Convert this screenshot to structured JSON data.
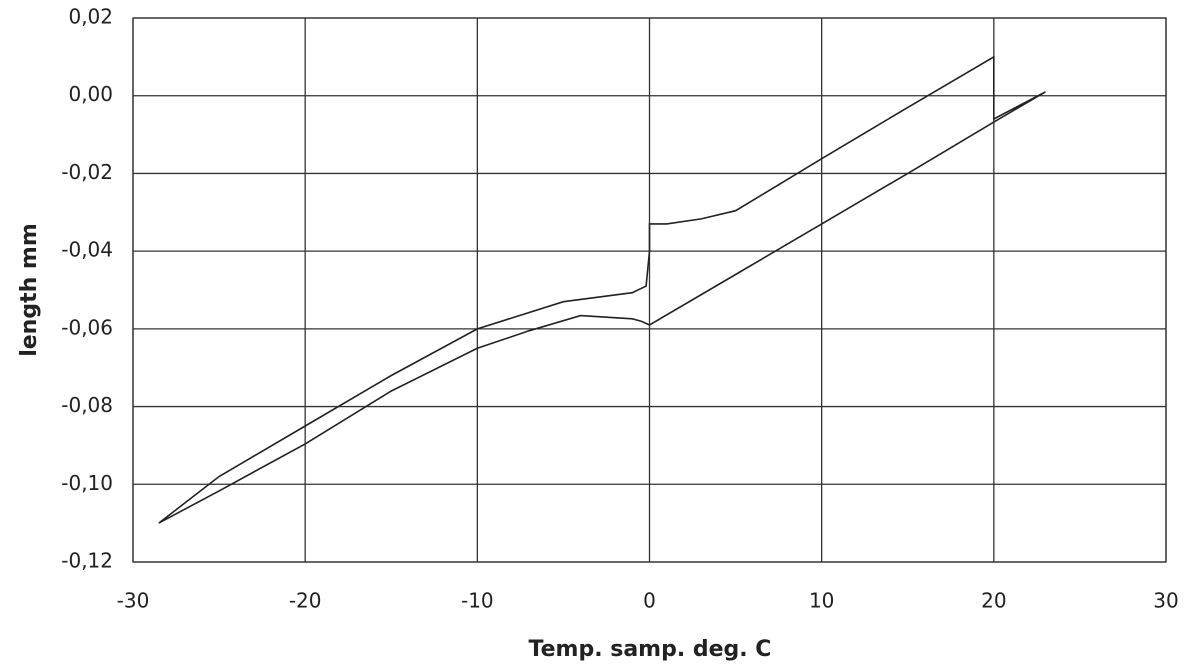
{
  "chart_data": {
    "type": "line",
    "x_label": "Temp. samp. deg. C",
    "y_label": "length mm",
    "x": [
      -28.5,
      -25,
      -20,
      -15,
      -10,
      -5,
      -1,
      -0.2,
      0,
      0,
      1,
      3,
      5,
      10,
      15,
      20,
      20,
      23,
      20,
      15,
      10,
      5,
      0,
      -0.5,
      -1,
      -4,
      -7,
      -10,
      -15,
      -20,
      -25,
      -28.5
    ],
    "values": [
      -0.11,
      -0.098,
      -0.085,
      -0.072,
      -0.06,
      -0.053,
      -0.0507,
      -0.049,
      -0.04,
      -0.033,
      -0.033,
      -0.0317,
      -0.0296,
      -0.0162,
      -0.003,
      0.01,
      -0.006,
      0.001,
      -0.0068,
      -0.02,
      -0.033,
      -0.046,
      -0.059,
      -0.058,
      -0.0574,
      -0.0566,
      -0.0605,
      -0.065,
      -0.076,
      -0.0896,
      -0.1017,
      -0.11
    ],
    "color": "#222222",
    "xlim": [
      -30,
      30
    ],
    "xticks": [
      -30,
      -20,
      -10,
      0,
      10,
      20,
      30
    ],
    "ylim": [
      -0.12,
      0.02
    ],
    "yticks": [
      {
        "value": -0.12,
        "label": "-0,12"
      },
      {
        "value": -0.1,
        "label": "-0,10"
      },
      {
        "value": -0.08,
        "label": "-0,08"
      },
      {
        "value": -0.06,
        "label": "-0,06"
      },
      {
        "value": -0.04,
        "label": "-0,04"
      },
      {
        "value": -0.02,
        "label": "-0,02"
      },
      {
        "value": 0.0,
        "label": "0,00"
      },
      {
        "value": 0.02,
        "label": "0,02"
      }
    ],
    "grid": true
  }
}
